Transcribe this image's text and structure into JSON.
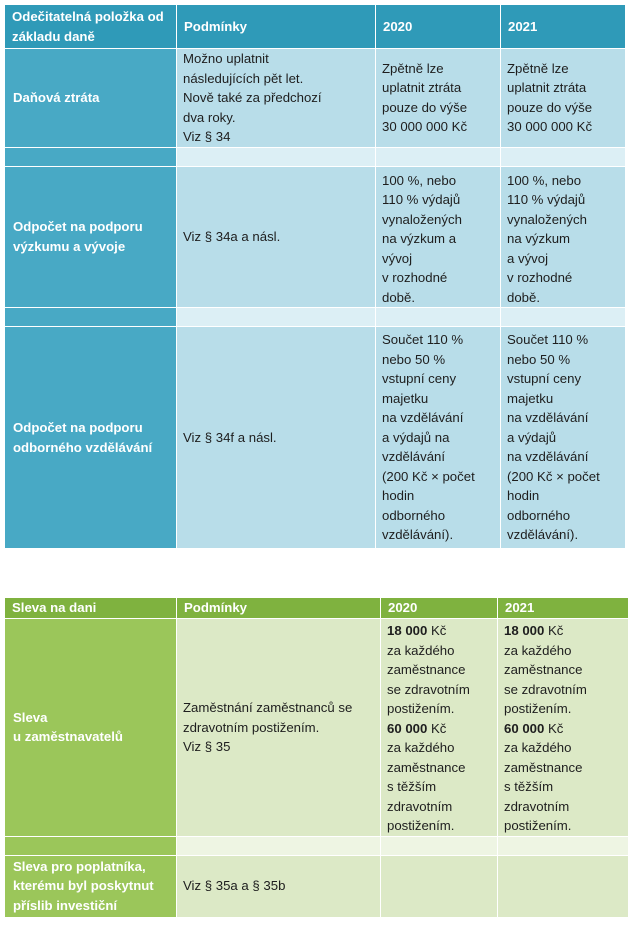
{
  "table1": {
    "headers": {
      "item": "Odečitatelná položka od základu daně",
      "conditions": "Podmínky",
      "y2020": "2020",
      "y2021": "2021"
    },
    "rows": [
      {
        "label": "Daňová ztráta",
        "conditions": [
          "Možno uplatnit",
          "následujících pět let.",
          "Nově také za předchozí",
          "dva roky.",
          "Viz § 34"
        ],
        "v2020": [
          "Zpětně lze",
          "uplatnit ztráta",
          "pouze do výše",
          "30 000 000 Kč"
        ],
        "v2021": [
          "Zpětně lze",
          "uplatnit ztráta",
          "pouze do výše",
          "30 000 000 Kč"
        ]
      },
      {
        "label": [
          "Odpočet na podporu",
          "výzkumu a vývoje"
        ],
        "conditions": [
          "Viz § 34a a násl."
        ],
        "v2020": [
          "100 %, nebo",
          "110 % výdajů",
          "vynaložených",
          "na výzkum a",
          "vývoj",
          "v rozhodné",
          "době."
        ],
        "v2021": [
          "100 %, nebo",
          "110 % výdajů",
          "vynaložených",
          "na výzkum",
          "a vývoj",
          "v rozhodné",
          "době."
        ]
      },
      {
        "label": [
          "Odpočet na podporu",
          "odborného vzdělávání"
        ],
        "conditions": [
          "Viz § 34f a násl."
        ],
        "v2020": [
          "Součet 110 %",
          "nebo 50 %",
          "vstupní ceny",
          "majetku",
          "na vzdělávání",
          "a výdajů na",
          "vzdělávání",
          "(200 Kč × počet",
          "hodin",
          "odborného",
          "vzdělávání)."
        ],
        "v2021": [
          "Součet 110 %",
          "nebo 50 %",
          "vstupní ceny",
          "majetku",
          "na vzdělávání",
          "a výdajů",
          "na vzdělávání",
          "(200 Kč × počet",
          "hodin",
          "odborného",
          "vzdělávání)."
        ]
      }
    ]
  },
  "table2": {
    "headers": {
      "item": "Sleva na dani",
      "conditions": "Podmínky",
      "y2020": "2020",
      "y2021": "2021"
    },
    "rows": [
      {
        "label": [
          "Sleva",
          "u zaměstnavatelů"
        ],
        "conditions": [
          "Zaměstnání zaměstnanců se",
          "zdravotním postižením.",
          "Viz § 35"
        ],
        "amount1": "18 000",
        "amount1_unit": " Kč",
        "text1": [
          "za každého",
          "zaměstnance",
          "se zdravotním",
          "postižením."
        ],
        "amount2": "60 000",
        "amount2_unit": " Kč",
        "text2": [
          "za každého",
          "zaměstnance",
          "s těžším",
          "zdravotním",
          "postižením."
        ]
      },
      {
        "label": [
          "Sleva pro poplatníka,",
          "kterému byl poskytnut",
          "příslib investiční"
        ],
        "conditions": [
          "Viz § 35a a § 35b"
        ]
      }
    ]
  }
}
